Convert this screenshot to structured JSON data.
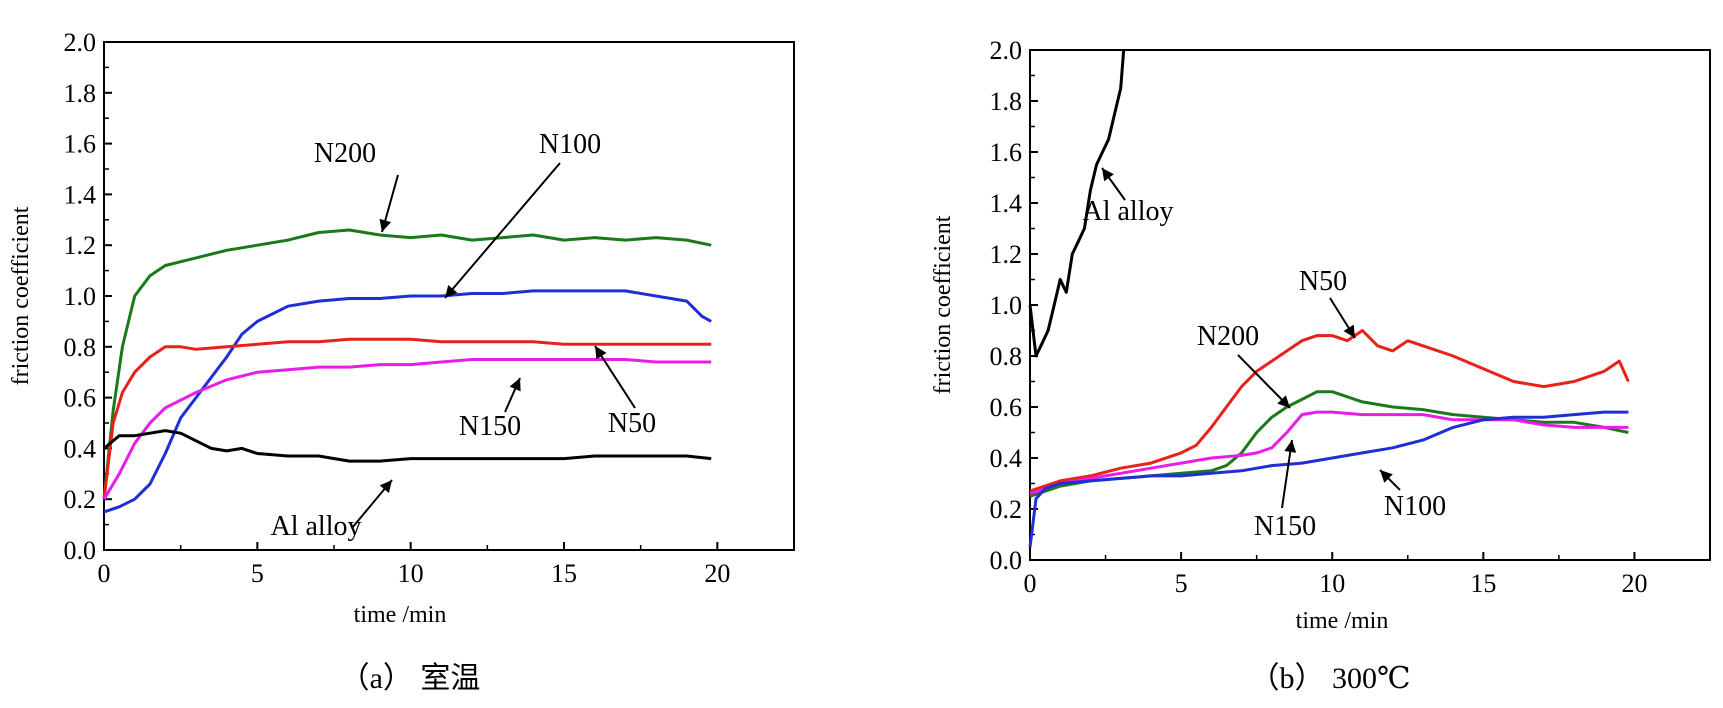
{
  "chart_data": [
    {
      "type": "line",
      "caption": "（a） 室温",
      "xlabel": "time /min",
      "ylabel": "friction coefficient",
      "xlim": [
        0,
        22.5
      ],
      "ylim": [
        0,
        2.0
      ],
      "xticks": [
        "0",
        "5",
        "10",
        "15",
        "20"
      ],
      "yticks": [
        "0.0",
        "0.2",
        "0.4",
        "0.6",
        "0.8",
        "1.0",
        "1.2",
        "1.4",
        "1.6",
        "1.8",
        "2.0"
      ],
      "grid": false,
      "series": [
        {
          "name": "N200",
          "color": "#1a7a1a",
          "x": [
            0,
            0.3,
            0.6,
            1,
            1.5,
            2,
            3,
            4,
            5,
            6,
            7,
            8,
            9,
            10,
            11,
            12,
            13,
            14,
            15,
            16,
            17,
            18,
            19,
            19.8
          ],
          "values": [
            0.2,
            0.55,
            0.8,
            1.0,
            1.08,
            1.12,
            1.15,
            1.18,
            1.2,
            1.22,
            1.25,
            1.26,
            1.24,
            1.23,
            1.24,
            1.22,
            1.23,
            1.24,
            1.22,
            1.23,
            1.22,
            1.23,
            1.22,
            1.2
          ]
        },
        {
          "name": "N100",
          "color": "#1f2fd6",
          "x": [
            0,
            0.5,
            1,
            1.5,
            2,
            2.5,
            3,
            3.5,
            4,
            4.5,
            5,
            6,
            7,
            8,
            9,
            10,
            11,
            12,
            13,
            14,
            15,
            16,
            17,
            18,
            19,
            19.5,
            19.8
          ],
          "values": [
            0.15,
            0.17,
            0.2,
            0.26,
            0.38,
            0.52,
            0.6,
            0.68,
            0.76,
            0.85,
            0.9,
            0.96,
            0.98,
            0.99,
            0.99,
            1.0,
            1.0,
            1.01,
            1.01,
            1.02,
            1.02,
            1.02,
            1.02,
            1.0,
            0.98,
            0.92,
            0.9
          ]
        },
        {
          "name": "N50",
          "color": "#e8211a",
          "x": [
            0,
            0.3,
            0.6,
            1,
            1.5,
            2,
            2.5,
            3,
            4,
            5,
            6,
            7,
            8,
            9,
            10,
            11,
            12,
            13,
            14,
            15,
            16,
            17,
            18,
            19,
            19.8
          ],
          "values": [
            0.2,
            0.5,
            0.62,
            0.7,
            0.76,
            0.8,
            0.8,
            0.79,
            0.8,
            0.81,
            0.82,
            0.82,
            0.83,
            0.83,
            0.83,
            0.82,
            0.82,
            0.82,
            0.82,
            0.81,
            0.81,
            0.81,
            0.81,
            0.81,
            0.81
          ]
        },
        {
          "name": "N150",
          "color": "#e81de8",
          "x": [
            0,
            0.5,
            1,
            1.5,
            2,
            3,
            4,
            5,
            6,
            7,
            8,
            9,
            10,
            11,
            12,
            13,
            14,
            15,
            16,
            17,
            18,
            19,
            19.8
          ],
          "values": [
            0.2,
            0.3,
            0.42,
            0.5,
            0.56,
            0.62,
            0.67,
            0.7,
            0.71,
            0.72,
            0.72,
            0.73,
            0.73,
            0.74,
            0.75,
            0.75,
            0.75,
            0.75,
            0.75,
            0.75,
            0.74,
            0.74,
            0.74
          ]
        },
        {
          "name": "Al alloy",
          "color": "#000000",
          "x": [
            0,
            0.5,
            1,
            1.5,
            2,
            2.5,
            3,
            3.5,
            4,
            4.5,
            5,
            6,
            7,
            8,
            9,
            10,
            11,
            12,
            13,
            14,
            15,
            16,
            17,
            18,
            19,
            19.8
          ],
          "values": [
            0.4,
            0.45,
            0.45,
            0.46,
            0.47,
            0.46,
            0.43,
            0.4,
            0.39,
            0.4,
            0.38,
            0.37,
            0.37,
            0.35,
            0.35,
            0.36,
            0.36,
            0.36,
            0.36,
            0.36,
            0.36,
            0.37,
            0.37,
            0.37,
            0.37,
            0.36
          ]
        }
      ],
      "annotations": [
        {
          "text": "N200",
          "series": "N200"
        },
        {
          "text": "N100",
          "series": "N100"
        },
        {
          "text": "N150",
          "series": "N150"
        },
        {
          "text": "N50",
          "series": "N50"
        },
        {
          "text": "Al alloy",
          "series": "Al alloy"
        }
      ]
    },
    {
      "type": "line",
      "caption": "（b） 300℃",
      "xlabel": "time /min",
      "ylabel": "friction coefficient",
      "xlim": [
        0,
        22.5
      ],
      "ylim": [
        0,
        2.0
      ],
      "xticks": [
        "0",
        "5",
        "10",
        "15",
        "20"
      ],
      "yticks": [
        "0.0",
        "0.2",
        "0.4",
        "0.6",
        "0.8",
        "1.0",
        "1.2",
        "1.4",
        "1.6",
        "1.8",
        "2.0"
      ],
      "grid": false,
      "series": [
        {
          "name": "Al alloy",
          "color": "#000000",
          "x": [
            0,
            0.2,
            0.4,
            0.6,
            0.8,
            1.0,
            1.2,
            1.4,
            1.6,
            1.8,
            2.0,
            2.2,
            2.4,
            2.6,
            2.8,
            3.0,
            3.1
          ],
          "values": [
            1.0,
            0.8,
            0.85,
            0.9,
            1.0,
            1.1,
            1.05,
            1.2,
            1.25,
            1.3,
            1.45,
            1.55,
            1.6,
            1.65,
            1.75,
            1.85,
            2.0
          ]
        },
        {
          "name": "N50",
          "color": "#e8211a",
          "x": [
            0,
            1,
            2,
            3,
            4,
            5,
            5.5,
            6,
            6.5,
            7,
            7.5,
            8,
            8.5,
            9,
            9.5,
            10,
            10.5,
            11,
            11.5,
            12,
            12.5,
            13,
            14,
            15,
            16,
            17,
            18,
            19,
            19.5,
            19.8
          ],
          "values": [
            0.27,
            0.31,
            0.33,
            0.36,
            0.38,
            0.42,
            0.45,
            0.52,
            0.6,
            0.68,
            0.74,
            0.78,
            0.82,
            0.86,
            0.88,
            0.88,
            0.86,
            0.9,
            0.84,
            0.82,
            0.86,
            0.84,
            0.8,
            0.75,
            0.7,
            0.68,
            0.7,
            0.74,
            0.78,
            0.7
          ]
        },
        {
          "name": "N200",
          "color": "#1a7a1a",
          "x": [
            0,
            1,
            2,
            3,
            4,
            5,
            6,
            6.5,
            7,
            7.5,
            8,
            8.5,
            9,
            9.5,
            10,
            10.5,
            11,
            12,
            13,
            14,
            15,
            16,
            17,
            18,
            19,
            19.8
          ],
          "values": [
            0.25,
            0.29,
            0.31,
            0.32,
            0.33,
            0.34,
            0.35,
            0.37,
            0.42,
            0.5,
            0.56,
            0.6,
            0.63,
            0.66,
            0.66,
            0.64,
            0.62,
            0.6,
            0.59,
            0.57,
            0.56,
            0.55,
            0.54,
            0.54,
            0.52,
            0.5
          ]
        },
        {
          "name": "N150",
          "color": "#e81de8",
          "x": [
            0,
            1,
            2,
            3,
            4,
            5,
            6,
            7,
            7.5,
            8,
            8.5,
            9,
            9.5,
            10,
            11,
            12,
            13,
            14,
            15,
            16,
            17,
            18,
            19,
            19.8
          ],
          "values": [
            0.26,
            0.3,
            0.32,
            0.34,
            0.36,
            0.38,
            0.4,
            0.41,
            0.42,
            0.44,
            0.5,
            0.57,
            0.58,
            0.58,
            0.57,
            0.57,
            0.57,
            0.55,
            0.55,
            0.55,
            0.53,
            0.52,
            0.52,
            0.52
          ]
        },
        {
          "name": "N100",
          "color": "#1f2fd6",
          "x": [
            0,
            0.2,
            0.5,
            1,
            2,
            3,
            4,
            5,
            6,
            7,
            8,
            9,
            10,
            11,
            12,
            13,
            14,
            15,
            16,
            17,
            18,
            19,
            19.8
          ],
          "values": [
            0.05,
            0.24,
            0.28,
            0.3,
            0.31,
            0.32,
            0.33,
            0.33,
            0.34,
            0.35,
            0.37,
            0.38,
            0.4,
            0.42,
            0.44,
            0.47,
            0.52,
            0.55,
            0.56,
            0.56,
            0.57,
            0.58,
            0.58
          ]
        }
      ],
      "annotations": [
        {
          "text": "Al alloy",
          "series": "Al alloy"
        },
        {
          "text": "N50",
          "series": "N50"
        },
        {
          "text": "N200",
          "series": "N200"
        },
        {
          "text": "N150",
          "series": "N150"
        },
        {
          "text": "N100",
          "series": "N100"
        }
      ]
    }
  ]
}
